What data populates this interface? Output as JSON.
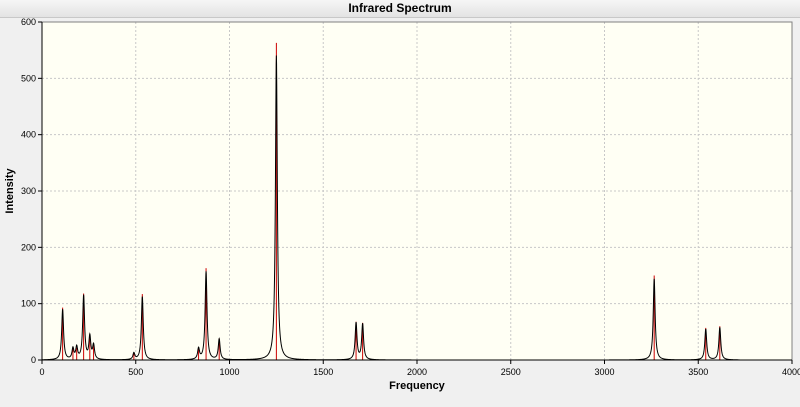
{
  "window": {
    "title": "Infrared Spectrum"
  },
  "chart_data": {
    "type": "line",
    "title": "Infrared Spectrum",
    "xlabel": "Frequency",
    "ylabel": "Intensity",
    "xlim": [
      0,
      4000
    ],
    "ylim": [
      0,
      600
    ],
    "xticks": [
      0,
      500,
      1000,
      1500,
      2000,
      2500,
      3000,
      3500,
      4000
    ],
    "yticks": [
      0,
      100,
      200,
      300,
      400,
      500,
      600
    ],
    "xtick_labels": [
      "0",
      "500",
      "1000",
      "1500",
      "2000",
      "2500",
      "3000",
      "3500",
      "4000"
    ],
    "ytick_labels": [
      "0",
      "100",
      "200",
      "300",
      "400",
      "500",
      "600"
    ],
    "grid": true,
    "legend": "none",
    "curve_end_x": 3720,
    "colors": {
      "spectrum": "#000000",
      "sticks": "#cc0000",
      "plot_bg": "#fffff4",
      "grid": "#c8c8c8"
    },
    "series": [
      {
        "kind": "stick_spectrum",
        "peaks": [
          {
            "x": 110,
            "y": 93
          },
          {
            "x": 165,
            "y": 20
          },
          {
            "x": 185,
            "y": 22
          },
          {
            "x": 222,
            "y": 118
          },
          {
            "x": 255,
            "y": 42
          },
          {
            "x": 275,
            "y": 26
          },
          {
            "x": 490,
            "y": 12
          },
          {
            "x": 535,
            "y": 117
          },
          {
            "x": 835,
            "y": 20
          },
          {
            "x": 875,
            "y": 163
          },
          {
            "x": 945,
            "y": 38
          },
          {
            "x": 1250,
            "y": 563
          },
          {
            "x": 1675,
            "y": 68
          },
          {
            "x": 1710,
            "y": 66
          },
          {
            "x": 3265,
            "y": 150
          },
          {
            "x": 3540,
            "y": 57
          },
          {
            "x": 3615,
            "y": 60
          }
        ]
      }
    ]
  }
}
